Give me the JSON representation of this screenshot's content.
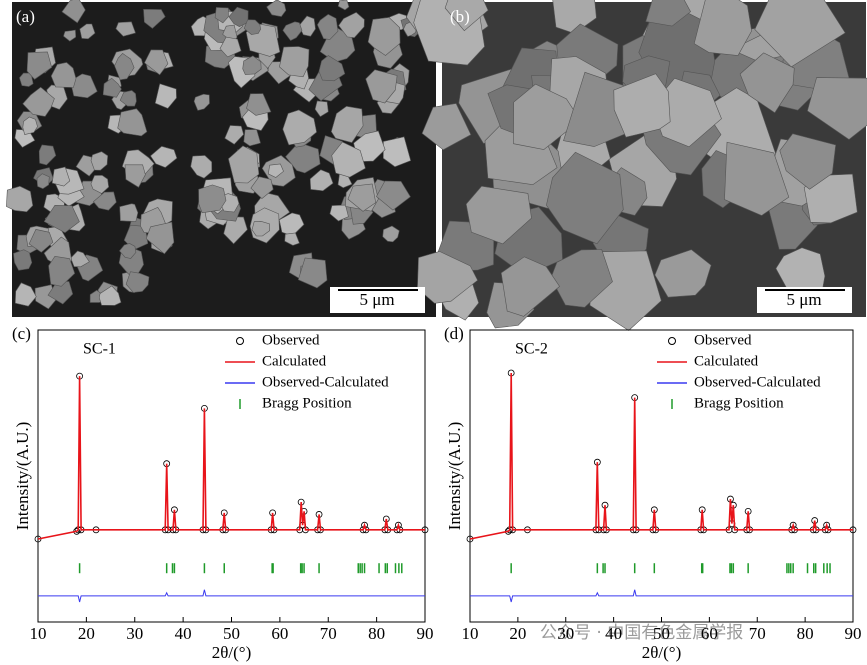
{
  "images": [
    {
      "label": "(a)",
      "scale_bar": "5 μm"
    },
    {
      "label": "(b)",
      "scale_bar": "5 μm"
    }
  ],
  "watermark": "公众号 · 中国有色金属学报",
  "chart_data": [
    {
      "type": "line",
      "panel_label": "(c)",
      "sample_label": "SC-1",
      "xlabel": "2θ/(°)",
      "ylabel": "Intensity/(A.U.)",
      "xlim": [
        10,
        90
      ],
      "ylim": [
        -60,
        130
      ],
      "xticks": [
        10,
        20,
        30,
        40,
        50,
        60,
        70,
        80,
        90
      ],
      "x": [
        10,
        18,
        18.3,
        18.6,
        18.9,
        22,
        36.3,
        36.6,
        36.9,
        37.9,
        38.2,
        38.5,
        44.1,
        44.4,
        44.7,
        48.2,
        48.5,
        48.8,
        58.2,
        58.5,
        58.8,
        64.1,
        64.4,
        64.7,
        65.0,
        65.3,
        67.8,
        68.1,
        68.4,
        77.2,
        77.5,
        77.8,
        81.7,
        82.0,
        82.3,
        84.2,
        84.5,
        84.8,
        90
      ],
      "series": [
        {
          "name": "Observed",
          "color": "#000000",
          "marker": "circle",
          "values": [
            -6,
            -1,
            0,
            100,
            0,
            0,
            0,
            43,
            0,
            0,
            13,
            0,
            0,
            79,
            0,
            0,
            11,
            0,
            0,
            11,
            0,
            0,
            18,
            3,
            12,
            0,
            0,
            10,
            0,
            0,
            3,
            0,
            0,
            7,
            0,
            0,
            3,
            0,
            0
          ]
        },
        {
          "name": "Calculated",
          "color": "#e8141a",
          "values": [
            -6,
            -1,
            0,
            100,
            0,
            0,
            0,
            43,
            0,
            0,
            13,
            0,
            0,
            79,
            0,
            0,
            11,
            0,
            0,
            11,
            0,
            0,
            18,
            3,
            12,
            0,
            0,
            10,
            0,
            0,
            3,
            0,
            0,
            7,
            0,
            0,
            3,
            0,
            0
          ]
        },
        {
          "name": "Observed-Calculated",
          "color": "#3a3af0",
          "values": [
            -43,
            -43,
            -43,
            -47,
            -43,
            -43,
            -43,
            -41,
            -43,
            -43,
            -43,
            -43,
            -43,
            -39,
            -43,
            -43,
            -43,
            -43,
            -43,
            -43,
            -43,
            -43,
            -43,
            -43,
            -43,
            -43,
            -43,
            -43,
            -43,
            -43,
            -43,
            -43,
            -43,
            -43,
            -43,
            -43,
            -43,
            -43,
            -43
          ]
        },
        {
          "name": "Bragg Position",
          "color": "#1f9a2a",
          "positions": [
            18.6,
            36.6,
            37.8,
            38.2,
            44.4,
            48.5,
            58.4,
            58.6,
            64.3,
            64.6,
            65.0,
            68.1,
            76.2,
            76.6,
            77.0,
            77.5,
            80.5,
            81.8,
            82.2,
            83.9,
            84.6,
            85.2
          ]
        }
      ]
    },
    {
      "type": "line",
      "panel_label": "(d)",
      "sample_label": "SC-2",
      "xlabel": "2θ/(°)",
      "ylabel": "Intensity/(A.U.)",
      "xlim": [
        10,
        90
      ],
      "ylim": [
        -60,
        130
      ],
      "xticks": [
        10,
        20,
        30,
        40,
        50,
        60,
        70,
        80,
        90
      ],
      "x": [
        10,
        18,
        18.3,
        18.6,
        18.9,
        22,
        36.3,
        36.6,
        36.9,
        37.9,
        38.2,
        38.5,
        44.1,
        44.4,
        44.7,
        48.2,
        48.5,
        48.8,
        58.2,
        58.5,
        58.8,
        64.1,
        64.4,
        64.7,
        65.0,
        65.3,
        67.8,
        68.1,
        68.4,
        77.2,
        77.5,
        77.8,
        81.7,
        82.0,
        82.3,
        84.2,
        84.5,
        84.8,
        90
      ],
      "series": [
        {
          "name": "Observed",
          "color": "#000000",
          "marker": "circle",
          "values": [
            -6,
            -1,
            0,
            102,
            0,
            0,
            0,
            44,
            0,
            0,
            16,
            0,
            0,
            86,
            0,
            0,
            13,
            0,
            0,
            13,
            0,
            0,
            20,
            4,
            16,
            0,
            0,
            12,
            0,
            0,
            3,
            0,
            0,
            6,
            0,
            0,
            3,
            0,
            0
          ]
        },
        {
          "name": "Calculated",
          "color": "#e8141a",
          "values": [
            -6,
            -1,
            0,
            102,
            0,
            0,
            0,
            44,
            0,
            0,
            16,
            0,
            0,
            86,
            0,
            0,
            13,
            0,
            0,
            13,
            0,
            0,
            20,
            4,
            16,
            0,
            0,
            12,
            0,
            0,
            3,
            0,
            0,
            6,
            0,
            0,
            3,
            0,
            0
          ]
        },
        {
          "name": "Observed-Calculated",
          "color": "#3a3af0",
          "values": [
            -43,
            -43,
            -43,
            -47,
            -43,
            -43,
            -43,
            -41,
            -43,
            -43,
            -43,
            -43,
            -43,
            -39,
            -43,
            -43,
            -43,
            -43,
            -43,
            -43,
            -43,
            -43,
            -43,
            -43,
            -43,
            -43,
            -43,
            -43,
            -43,
            -43,
            -43,
            -43,
            -43,
            -43,
            -43,
            -43,
            -43,
            -43,
            -43
          ]
        },
        {
          "name": "Bragg Position",
          "color": "#1f9a2a",
          "positions": [
            18.6,
            36.6,
            37.8,
            38.2,
            44.4,
            48.5,
            58.4,
            58.6,
            64.3,
            64.6,
            65.0,
            68.1,
            76.2,
            76.6,
            77.0,
            77.5,
            80.5,
            81.8,
            82.2,
            83.9,
            84.6,
            85.2
          ]
        }
      ]
    }
  ]
}
